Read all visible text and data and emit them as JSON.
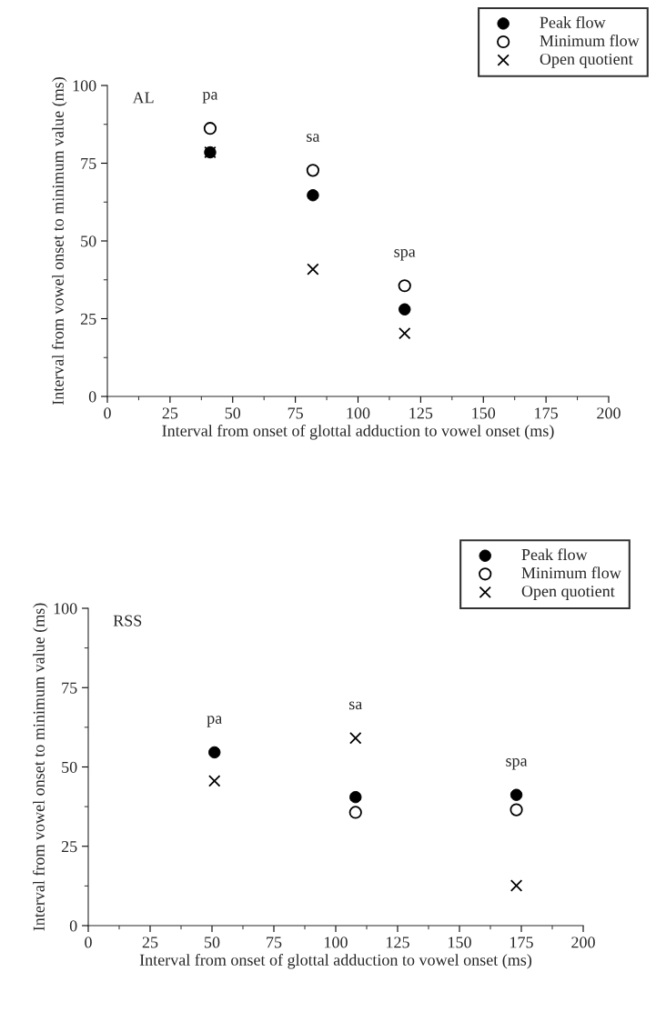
{
  "chart_data": [
    {
      "type": "scatter",
      "title": "AL",
      "xlabel": "Interval from onset of glottal adduction to vowel onset (ms)",
      "ylabel": "Interval from vowel onset to minimum value (ms)",
      "xlim": [
        0,
        200
      ],
      "xticks": [
        0,
        25,
        50,
        75,
        100,
        125,
        150,
        175,
        200
      ],
      "ylim": [
        0,
        100
      ],
      "yticks": [
        0,
        25,
        50,
        75,
        100
      ],
      "grid": false,
      "legend": "top right",
      "series": [
        {
          "name": "Peak flow",
          "color": "#000000",
          "marker": "circle",
          "x": [
            41,
            82,
            118.6
          ],
          "values": [
            78.5,
            64.7,
            28
          ]
        },
        {
          "name": "Minimum flow",
          "color": "#000000",
          "marker": "circle",
          "x": [
            41,
            82,
            118.6
          ],
          "values": [
            86.2,
            72.7,
            35.6
          ]
        },
        {
          "name": "Open quotient",
          "color": "#000000",
          "marker": "cross",
          "x": [
            41,
            82,
            118.6
          ],
          "values": [
            78.5,
            40.9,
            20.3
          ]
        }
      ],
      "annotations": [
        "pa",
        "sa",
        "spa"
      ]
    },
    {
      "type": "scatter",
      "title": "RSS",
      "xlabel": "Interval from onset of glottal adduction to vowel onset (ms)",
      "ylabel": "Interval from vowel onset to minimum value (ms)",
      "xlim": [
        0,
        200
      ],
      "xticks": [
        0,
        25,
        50,
        75,
        100,
        125,
        150,
        175,
        200
      ],
      "ylim": [
        0,
        100
      ],
      "yticks": [
        0,
        25,
        50,
        75,
        100
      ],
      "grid": false,
      "legend": "top right",
      "series": [
        {
          "name": "Peak flow",
          "color": "#000000",
          "marker": "circle",
          "x": [
            51,
            108,
            173
          ],
          "values": [
            54.6,
            40.5,
            41.2
          ]
        },
        {
          "name": "Minimum flow",
          "color": "#000000",
          "marker": "circle",
          "x": [
            108,
            173
          ],
          "values": [
            35.7,
            36.5
          ]
        },
        {
          "name": "Open quotient",
          "color": "#000000",
          "marker": "cross",
          "x": [
            51,
            108,
            173
          ],
          "values": [
            45.6,
            59.1,
            12.6
          ]
        }
      ],
      "annotations": [
        "pa",
        "sa",
        "spa"
      ]
    }
  ]
}
